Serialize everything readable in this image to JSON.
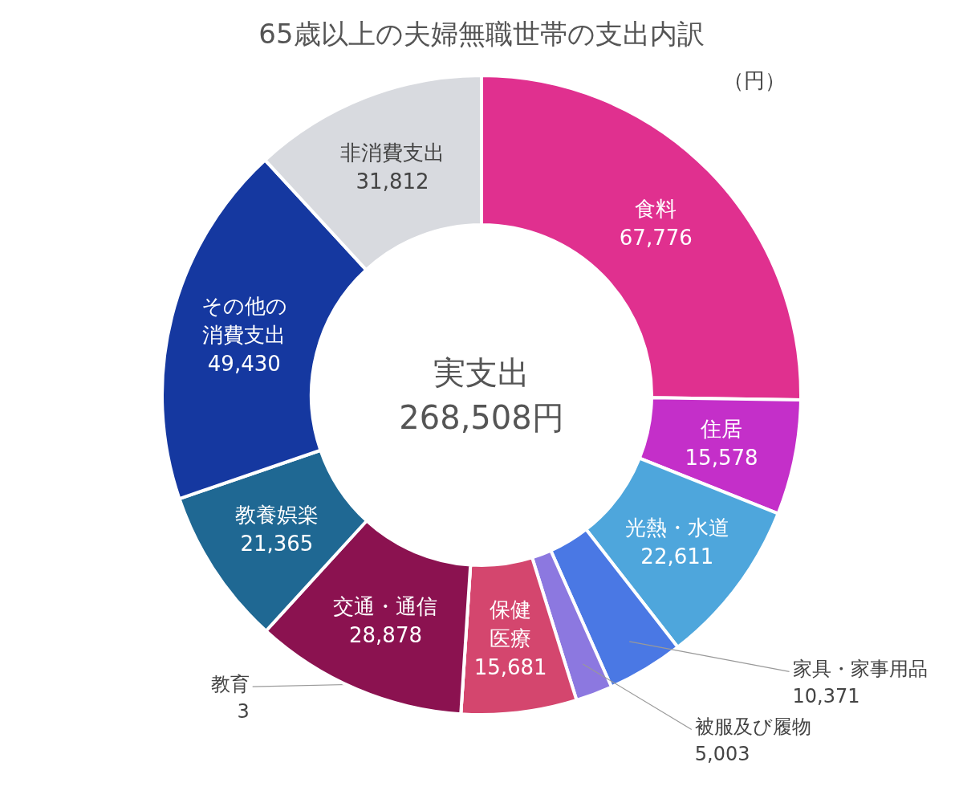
{
  "chart_data": {
    "type": "donut",
    "title": "65歳以上の夫婦無職世帯の支出内訳",
    "categories": [
      "食料",
      "住居",
      "光熱・水道",
      "家具・家事用品",
      "被服及び履物",
      "保健医療",
      "教育",
      "交通・通信",
      "教養娯楽",
      "その他の消費支出",
      "非消費支出"
    ],
    "values": [
      67776,
      15578,
      22611,
      10371,
      5003,
      15681,
      3,
      28878,
      21365,
      49430,
      31812
    ],
    "value_labels": [
      "67,776",
      "15,578",
      "22,611",
      "10,371",
      "5,003",
      "15,681",
      "3",
      "28,878",
      "21,365",
      "49,430",
      "31,812"
    ],
    "colors": [
      "#e0308f",
      "#c42fc9",
      "#4ea6dc",
      "#4a78e4",
      "#8c78e0",
      "#d4466e",
      "#2a6f9a",
      "#8b1250",
      "#1f6893",
      "#1538a0",
      "#d8dadf"
    ],
    "annotations": [
      "（円）",
      "実支出",
      "268,508円"
    ]
  }
}
